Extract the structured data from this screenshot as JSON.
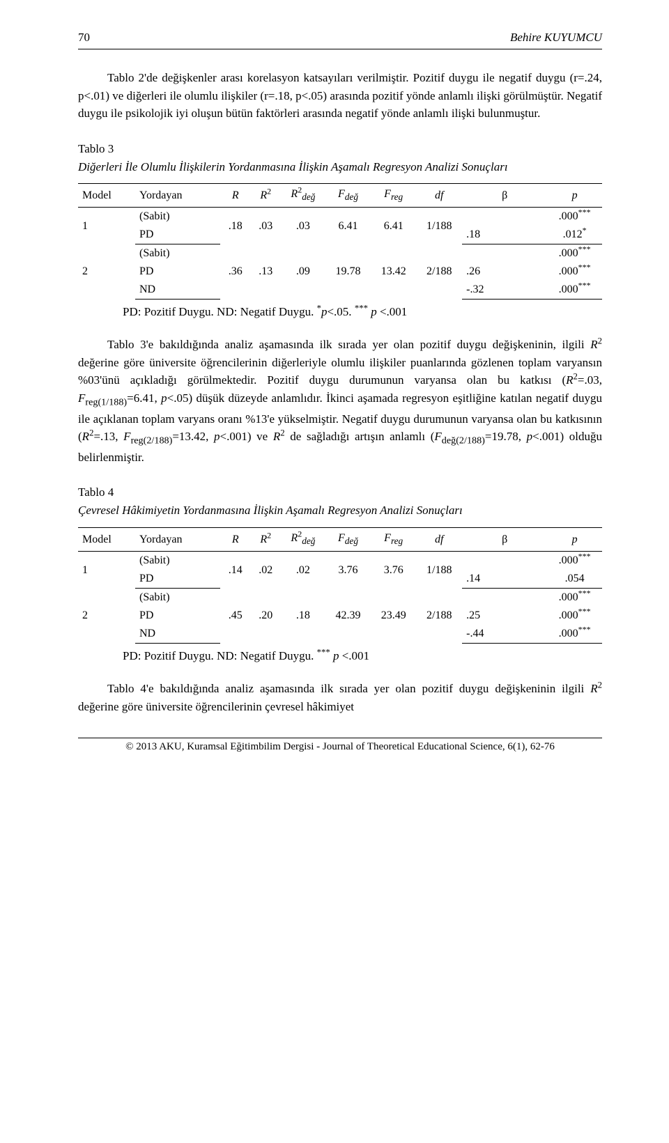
{
  "page": {
    "number": "70",
    "author": "Behire KUYUMCU"
  },
  "paragraph1": "Tablo 2'de değişkenler arası korelasyon katsayıları verilmiştir. Pozitif duygu ile negatif duygu (r=.24, p<.01) ve diğerleri ile olumlu ilişkiler (r=.18, p<.05) arasında pozitif yönde anlamlı ilişki görülmüştür. Negatif duygu ile psikolojik iyi oluşun bütün faktörleri arasında negatif yönde anlamlı ilişki bulunmuştur.",
  "table3": {
    "caption_num": "Tablo 3",
    "caption_title": "Diğerleri İle Olumlu İlişkilerin Yordanmasına İlişkin Aşamalı Regresyon Analizi Sonuçları",
    "headers": {
      "model": "Model",
      "predictor": "Yordayan",
      "R": "R",
      "R2": "R",
      "R2_sup": "2",
      "R2deg": "R",
      "R2deg_sup": "2",
      "R2deg_sub": "değ",
      "Fdeg": "F",
      "Fdeg_sub": "değ",
      "Freg": "F",
      "Freg_sub": "reg",
      "df": "df",
      "beta": "β",
      "p": "p"
    },
    "model1": {
      "num": "1",
      "row_sabit_label": "(Sabit)",
      "row_pd_label": "PD",
      "R": ".18",
      "R2": ".03",
      "R2deg": ".03",
      "Fdeg": "6.41",
      "Freg": "6.41",
      "df": "1/188",
      "sabit_p": ".000",
      "sabit_p_stars": "***",
      "pd_beta": ".18",
      "pd_p": ".012",
      "pd_p_stars": "*"
    },
    "model2": {
      "num": "2",
      "row_sabit_label": "(Sabit)",
      "row_pd_label": "PD",
      "row_nd_label": "ND",
      "R": ".36",
      "R2": ".13",
      "R2deg": ".09",
      "Fdeg": "19.78",
      "Freg": "13.42",
      "df": "2/188",
      "sabit_p": ".000",
      "sabit_p_stars": "***",
      "pd_beta": ".26",
      "pd_p": ".000",
      "pd_p_stars": "***",
      "nd_beta": "-.32",
      "nd_p": ".000",
      "nd_p_stars": "***"
    },
    "note": "PD: Pozitif Duygu. ND: Negatif Duygu. *p<.05. *** p <.001"
  },
  "paragraph2_a": "Tablo 3'e bakıldığında analiz aşamasında ilk sırada yer olan pozitif duygu değişkeninin, ilgili ",
  "paragraph2_b": " değerine göre üniversite öğrencilerinin diğerleriyle olumlu ilişkiler puanlarında gözlenen toplam varyansın %03'ünü açıkladığı görülmektedir. Pozitif duygu durumunun varyansa olan bu katkısı (",
  "paragraph2_c": "=.03, ",
  "paragraph2_d": "=6.41, ",
  "paragraph2_e": "<.05) düşük düzeyde anlamlıdır. İkinci aşamada regresyon eşitliğine katılan negatif duygu ile açıklanan toplam varyans oranı %13'e yükselmiştir. Negatif duygu durumunun varyansa olan bu katkısının (",
  "paragraph2_f": "=.13, ",
  "paragraph2_g": "=13.42, ",
  "paragraph2_h": "<.001) ve ",
  "paragraph2_i": " de sağladığı artışın anlamlı (",
  "paragraph2_j": "=19.78, ",
  "paragraph2_k": "<.001) olduğu belirlenmiştir.",
  "stat_labels": {
    "R2": "R",
    "R2_sup": "2",
    "Freg1": "F",
    "Freg1_sub": "reg(1/188)",
    "Freg2": "F",
    "Freg2_sub": "reg(2/188)",
    "Fdeg2": "F",
    "Fdeg2_sub": "değ(2/188)",
    "p": "p"
  },
  "table4": {
    "caption_num": "Tablo 4",
    "caption_title": "Çevresel Hâkimiyetin Yordanmasına İlişkin Aşamalı Regresyon Analizi Sonuçları",
    "model1": {
      "num": "1",
      "row_sabit_label": "(Sabit)",
      "row_pd_label": "PD",
      "R": ".14",
      "R2": ".02",
      "R2deg": ".02",
      "Fdeg": "3.76",
      "Freg": "3.76",
      "df": "1/188",
      "sabit_p": ".000",
      "sabit_p_stars": "***",
      "pd_beta": ".14",
      "pd_p": ".054",
      "pd_p_stars": ""
    },
    "model2": {
      "num": "2",
      "row_sabit_label": "(Sabit)",
      "row_pd_label": "PD",
      "row_nd_label": "ND",
      "R": ".45",
      "R2": ".20",
      "R2deg": ".18",
      "Fdeg": "42.39",
      "Freg": "23.49",
      "df": "2/188",
      "sabit_p": ".000",
      "sabit_p_stars": "***",
      "pd_beta": ".25",
      "pd_p": ".000",
      "pd_p_stars": "***",
      "nd_beta": "-.44",
      "nd_p": ".000",
      "nd_p_stars": "***"
    },
    "note": "PD: Pozitif Duygu. ND: Negatif Duygu. *** p <.001"
  },
  "paragraph3": "Tablo 4'e bakıldığında analiz aşamasında ilk sırada yer olan pozitif duygu değişkeninin ilgili R² değerine göre üniversite öğrencilerinin çevresel hâkimiyet",
  "footer": "© 2013 AKU, Kuramsal Eğitimbilim Dergisi - Journal of Theoretical Educational Science, 6(1), 62-76"
}
